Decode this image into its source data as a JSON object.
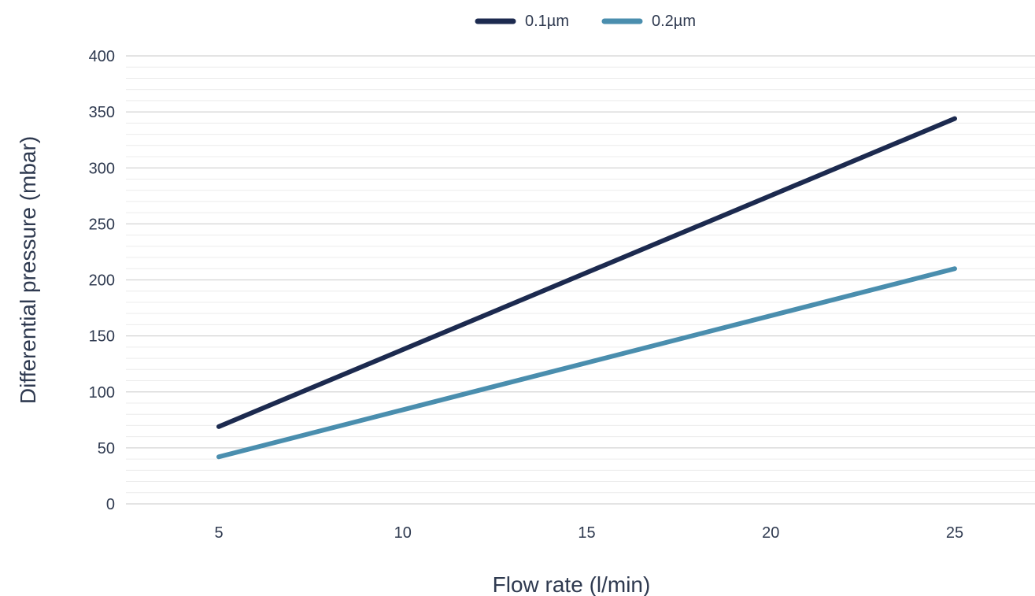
{
  "chart_data": {
    "type": "line",
    "x": [
      5,
      10,
      15,
      20,
      25
    ],
    "x_ticks": [
      "5",
      "10",
      "15",
      "20",
      "25"
    ],
    "y_ticks": [
      "0",
      "50",
      "100",
      "150",
      "200",
      "250",
      "300",
      "350",
      "400"
    ],
    "ylim": [
      0,
      400
    ],
    "y_minor_step": 10,
    "xlabel": "Flow rate (l/min)",
    "ylabel": "Differential pressure (mbar)",
    "grid": true,
    "legend_position": "top-center",
    "series": [
      {
        "name": "0.1µm",
        "color": "#1c2a4f",
        "x": [
          5,
          25
        ],
        "values": [
          69,
          344
        ]
      },
      {
        "name": "0.2µm",
        "color": "#4a8eae",
        "x": [
          5,
          25
        ],
        "values": [
          42,
          210
        ]
      }
    ]
  }
}
